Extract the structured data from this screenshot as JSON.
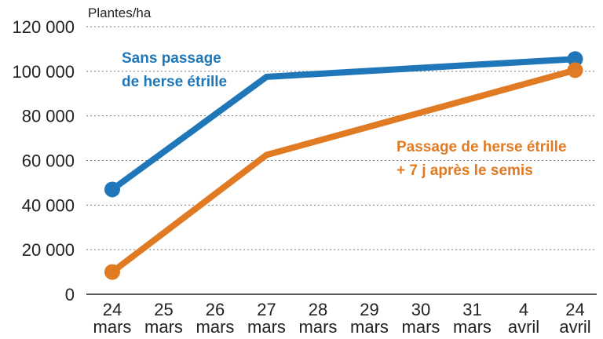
{
  "chart_data": {
    "type": "line",
    "y_unit": "Plantes/ha",
    "categories": [
      [
        "24",
        "mars"
      ],
      [
        "25",
        "mars"
      ],
      [
        "26",
        "mars"
      ],
      [
        "27",
        "mars"
      ],
      [
        "28",
        "mars"
      ],
      [
        "29",
        "mars"
      ],
      [
        "30",
        "mars"
      ],
      [
        "31",
        "mars"
      ],
      [
        "4",
        "avril"
      ],
      [
        "24",
        "avril"
      ]
    ],
    "ylim": [
      0,
      120000
    ],
    "yticks": [
      0,
      20000,
      40000,
      60000,
      80000,
      100000,
      120000
    ],
    "ytick_labels": [
      "0",
      "20 000",
      "40 000",
      "60 000",
      "80 000",
      "100 000",
      "120 000"
    ],
    "grid": true,
    "series": [
      {
        "name": "Sans passage de herse étrille",
        "label_lines": [
          "Sans passage",
          "de herse étrille"
        ],
        "color": "#1f77b9",
        "points": [
          {
            "index": 0,
            "value": 47000
          },
          {
            "index": 3,
            "value": 97500
          },
          {
            "index": 9,
            "value": 105500
          }
        ]
      },
      {
        "name": "Passage de herse étrille + 7 j après le semis",
        "label_lines": [
          "Passage de herse étrille",
          "+ 7 j après le semis"
        ],
        "color": "#e07b24",
        "points": [
          {
            "index": 0,
            "value": 10000
          },
          {
            "index": 3,
            "value": 62500
          },
          {
            "index": 9,
            "value": 100500
          }
        ]
      }
    ]
  }
}
